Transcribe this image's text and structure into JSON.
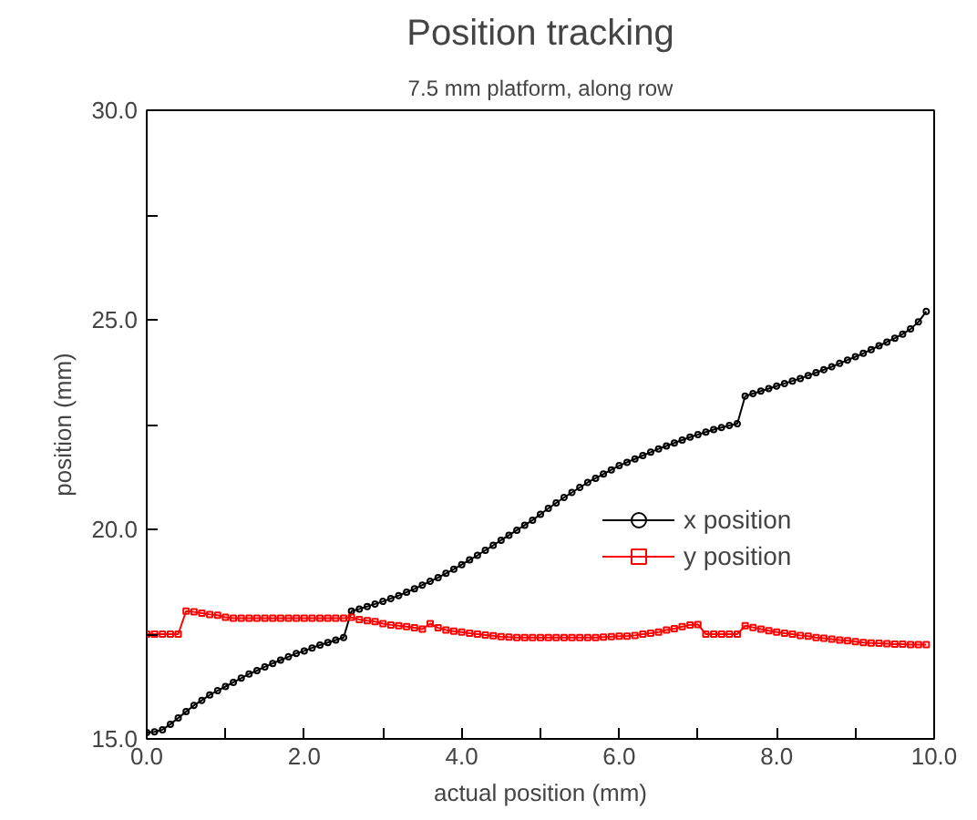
{
  "chart_data": {
    "type": "line",
    "title": "Position tracking",
    "subtitle": "7.5 mm platform, along row",
    "xlabel": "actual position (mm)",
    "ylabel": "position (mm)",
    "x": [
      0.0,
      0.1,
      0.2,
      0.3,
      0.4,
      0.5,
      0.6,
      0.7,
      0.8,
      0.9,
      1.0,
      1.1,
      1.2,
      1.3,
      1.4,
      1.5,
      1.6,
      1.7,
      1.8,
      1.9,
      2.0,
      2.1,
      2.2,
      2.3,
      2.4,
      2.5,
      2.6,
      2.7,
      2.8,
      2.9,
      3.0,
      3.1,
      3.2,
      3.3,
      3.4,
      3.5,
      3.6,
      3.7,
      3.8,
      3.9,
      4.0,
      4.1,
      4.2,
      4.3,
      4.4,
      4.5,
      4.6,
      4.7,
      4.8,
      4.9,
      5.0,
      5.1,
      5.2,
      5.3,
      5.4,
      5.5,
      5.6,
      5.7,
      5.8,
      5.9,
      6.0,
      6.1,
      6.2,
      6.3,
      6.4,
      6.5,
      6.6,
      6.7,
      6.8,
      6.9,
      7.0,
      7.1,
      7.2,
      7.3,
      7.4,
      7.5,
      7.6,
      7.7,
      7.8,
      7.9,
      8.0,
      8.1,
      8.2,
      8.3,
      8.4,
      8.5,
      8.6,
      8.7,
      8.8,
      8.9,
      9.0,
      9.1,
      9.2,
      9.3,
      9.4,
      9.5,
      9.6,
      9.7,
      9.8,
      9.9
    ],
    "series": [
      {
        "name": "x position",
        "color": "#000000",
        "marker": "circle",
        "values": [
          15.15,
          15.17,
          15.22,
          15.35,
          15.5,
          15.65,
          15.8,
          15.92,
          16.05,
          16.15,
          16.25,
          16.35,
          16.45,
          16.55,
          16.63,
          16.72,
          16.8,
          16.88,
          16.96,
          17.04,
          17.1,
          17.17,
          17.24,
          17.3,
          17.36,
          17.42,
          18.05,
          18.1,
          18.16,
          18.22,
          18.28,
          18.35,
          18.42,
          18.5,
          18.58,
          18.67,
          18.76,
          18.85,
          18.95,
          19.05,
          19.16,
          19.27,
          19.38,
          19.5,
          19.62,
          19.74,
          19.86,
          19.98,
          20.1,
          20.22,
          20.36,
          20.5,
          20.63,
          20.76,
          20.88,
          21.0,
          21.12,
          21.22,
          21.32,
          21.42,
          21.52,
          21.6,
          21.68,
          21.76,
          21.84,
          21.92,
          21.99,
          22.06,
          22.13,
          22.2,
          22.26,
          22.32,
          22.38,
          22.43,
          22.48,
          22.52,
          23.18,
          23.24,
          23.3,
          23.36,
          23.42,
          23.48,
          23.54,
          23.6,
          23.67,
          23.74,
          23.81,
          23.88,
          23.96,
          24.04,
          24.12,
          24.2,
          24.29,
          24.38,
          24.47,
          24.56,
          24.66,
          24.78,
          24.95,
          25.2
        ]
      },
      {
        "name": "y position",
        "color": "#ff0000",
        "marker": "square",
        "values": [
          17.5,
          17.5,
          17.5,
          17.5,
          17.5,
          18.05,
          18.03,
          18.0,
          17.97,
          17.95,
          17.9,
          17.88,
          17.88,
          17.88,
          17.88,
          17.88,
          17.88,
          17.88,
          17.88,
          17.88,
          17.88,
          17.88,
          17.88,
          17.88,
          17.88,
          17.88,
          17.9,
          17.85,
          17.82,
          17.8,
          17.75,
          17.72,
          17.7,
          17.68,
          17.65,
          17.62,
          17.75,
          17.65,
          17.6,
          17.57,
          17.55,
          17.52,
          17.5,
          17.48,
          17.46,
          17.44,
          17.43,
          17.42,
          17.42,
          17.42,
          17.42,
          17.42,
          17.42,
          17.42,
          17.42,
          17.42,
          17.42,
          17.42,
          17.43,
          17.44,
          17.45,
          17.45,
          17.47,
          17.5,
          17.52,
          17.55,
          17.6,
          17.63,
          17.68,
          17.72,
          17.73,
          17.5,
          17.5,
          17.5,
          17.5,
          17.5,
          17.7,
          17.66,
          17.62,
          17.58,
          17.55,
          17.52,
          17.5,
          17.47,
          17.45,
          17.42,
          17.4,
          17.38,
          17.36,
          17.34,
          17.32,
          17.3,
          17.29,
          17.28,
          17.27,
          17.26,
          17.26,
          17.25,
          17.25,
          17.25
        ]
      }
    ],
    "xlim": [
      0,
      10
    ],
    "ylim": [
      15,
      30
    ],
    "xticks": [
      {
        "value": 0,
        "label": "0.0"
      },
      {
        "value": 1,
        "label": null
      },
      {
        "value": 2,
        "label": "2.0"
      },
      {
        "value": 3,
        "label": null
      },
      {
        "value": 4,
        "label": "4.0"
      },
      {
        "value": 5,
        "label": null
      },
      {
        "value": 6,
        "label": "6.0"
      },
      {
        "value": 7,
        "label": null
      },
      {
        "value": 8,
        "label": "8.0"
      },
      {
        "value": 9,
        "label": null
      },
      {
        "value": 10,
        "label": "10.0"
      }
    ],
    "yticks": [
      {
        "value": 15,
        "label": "15.0"
      },
      {
        "value": 17.5,
        "label": null
      },
      {
        "value": 20,
        "label": "20.0"
      },
      {
        "value": 22.5,
        "label": null
      },
      {
        "value": 25,
        "label": "25.0"
      },
      {
        "value": 27.5,
        "label": null
      },
      {
        "value": 30,
        "label": "30.0"
      }
    ],
    "grid": false,
    "legend": "right",
    "line_style": "solid"
  }
}
